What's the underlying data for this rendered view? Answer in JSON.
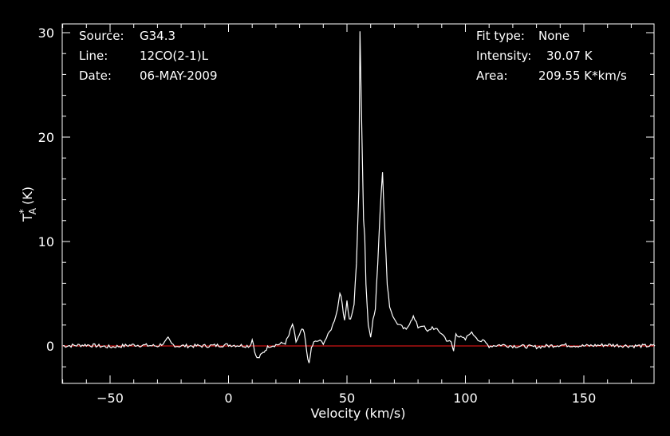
{
  "info_left": [
    {
      "label": "Source:",
      "value": "G34.3"
    },
    {
      "label": "Line:",
      "value": "12CO(2-1)L"
    },
    {
      "label": "Date:",
      "value": "06-MAY-2009"
    }
  ],
  "info_right": [
    {
      "label": "Fit type:",
      "value": "None"
    },
    {
      "label": "Intensity:",
      "value": "30.07 K"
    },
    {
      "label": "Area:",
      "value": "209.55 K*km/s"
    }
  ],
  "colors": {
    "background": "#000000",
    "axes": "#ffffff",
    "spectrum": "#ffffff",
    "baseline": "#ff1a1a"
  },
  "chart_data": {
    "type": "line",
    "xlabel": "Velocity (km/s)",
    "ylabel": "T",
    "ylabel_sub": "A",
    "ylabel_sup": "*",
    "ylabel_unit": "(K)",
    "xlim": [
      -70,
      180
    ],
    "ylim": [
      -3.5,
      31
    ],
    "xticks": [
      -50,
      0,
      50,
      100,
      150
    ],
    "xtick_labels": [
      "−50",
      "0",
      "50",
      "100",
      "150"
    ],
    "yticks": [
      0,
      10,
      20,
      30
    ],
    "ytick_labels": [
      "0",
      "10",
      "20",
      "30"
    ],
    "baseline": 0,
    "series": [
      {
        "x": [
          -70,
          -60,
          -50,
          -40,
          -30,
          -27,
          -25.5,
          -24,
          -22,
          -10,
          0,
          9,
          10,
          10.5,
          11.5,
          12.5,
          14,
          15.5,
          17,
          20,
          24,
          25.5,
          27,
          28.5,
          30,
          31,
          32,
          33,
          34,
          35,
          36,
          38,
          40,
          42,
          44,
          46,
          47,
          48,
          49,
          50,
          51,
          52,
          53,
          54,
          55,
          55.5,
          56,
          57,
          57.5,
          58,
          59,
          60,
          61,
          62,
          63,
          64,
          65,
          66,
          67,
          68,
          70,
          72,
          75,
          77,
          78,
          80,
          82,
          84,
          86,
          88,
          90,
          92,
          94,
          95,
          96,
          97,
          98,
          100,
          102,
          104,
          106,
          108,
          110,
          115,
          120,
          130,
          140,
          150,
          160,
          170,
          180
        ],
        "y": [
          0,
          0.1,
          -0.1,
          0.1,
          0,
          0.3,
          0.7,
          0.2,
          0,
          0,
          0.1,
          0,
          0.6,
          0.2,
          -1.0,
          -1.2,
          -0.8,
          -0.4,
          0,
          0.1,
          0.3,
          1.0,
          2.1,
          0.4,
          1.0,
          1.6,
          1.2,
          -0.5,
          -1.8,
          -0.2,
          0.3,
          0.5,
          0.3,
          1.0,
          2.0,
          3.5,
          5.2,
          4.0,
          2.5,
          4.3,
          2.5,
          2.8,
          4.0,
          8.0,
          15.0,
          30.0,
          24.0,
          12.2,
          10.5,
          6.0,
          2.0,
          1.0,
          2.5,
          3.5,
          8.0,
          13.0,
          16.8,
          11.0,
          6.0,
          3.8,
          2.5,
          2.0,
          1.5,
          2.5,
          2.8,
          1.8,
          2.0,
          1.3,
          1.8,
          1.5,
          1.2,
          0.6,
          0.3,
          -0.5,
          1.2,
          1.0,
          0.8,
          0.6,
          1.3,
          1.0,
          0.5,
          0.4,
          0,
          0.1,
          0,
          -0.1,
          0.1,
          0,
          0.1,
          0,
          0
        ]
      }
    ]
  }
}
